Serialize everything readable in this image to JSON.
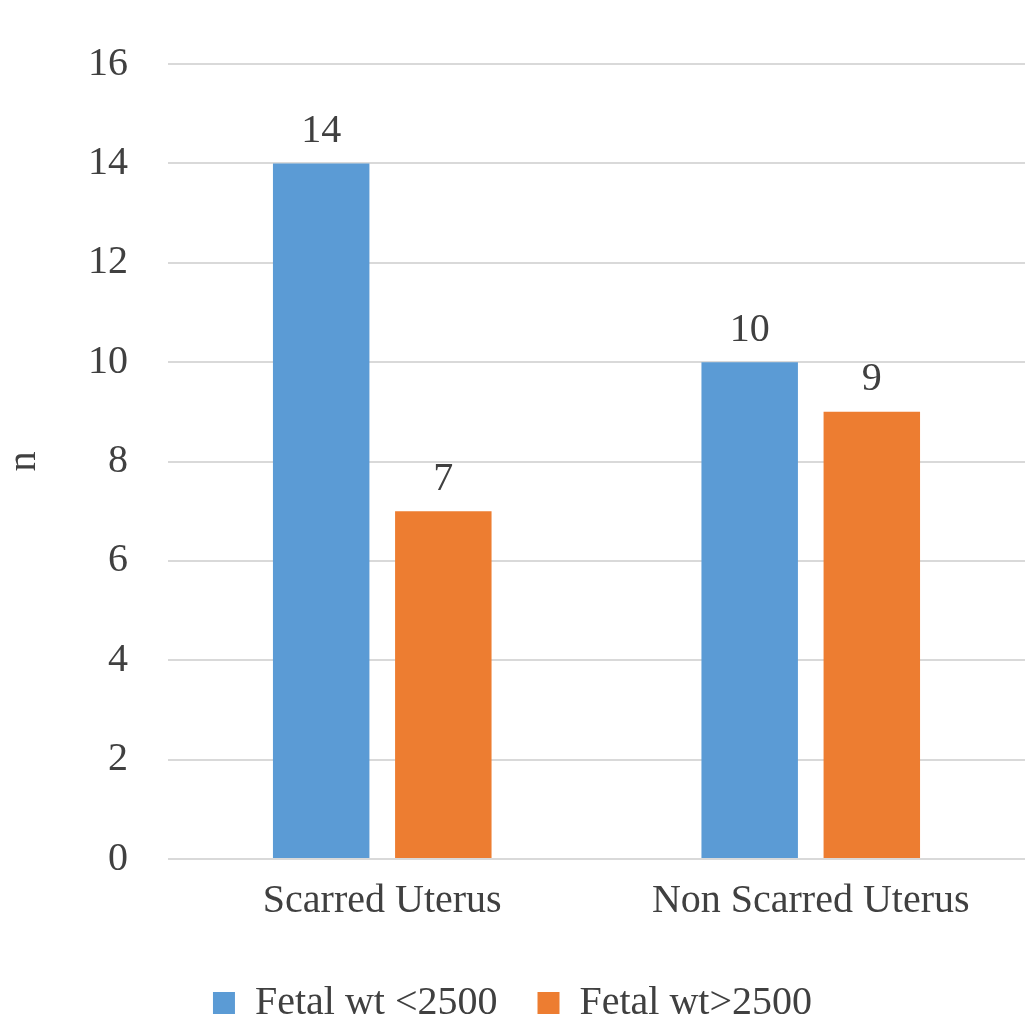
{
  "chart_data": {
    "type": "bar",
    "ylabel": "n",
    "categories": [
      "Scarred Uterus",
      "Non Scarred Uterus"
    ],
    "series": [
      {
        "name": "Fetal wt <2500",
        "color": "#5b9bd5",
        "values": [
          14,
          10
        ]
      },
      {
        "name": "Fetal wt>2500",
        "color": "#ed7d31",
        "values": [
          7,
          9
        ]
      }
    ],
    "ylim": [
      0,
      16
    ],
    "yticks": [
      0,
      2,
      4,
      6,
      8,
      10,
      12,
      14,
      16
    ],
    "grid": "y",
    "legend": "bottom",
    "data_labels": true
  }
}
